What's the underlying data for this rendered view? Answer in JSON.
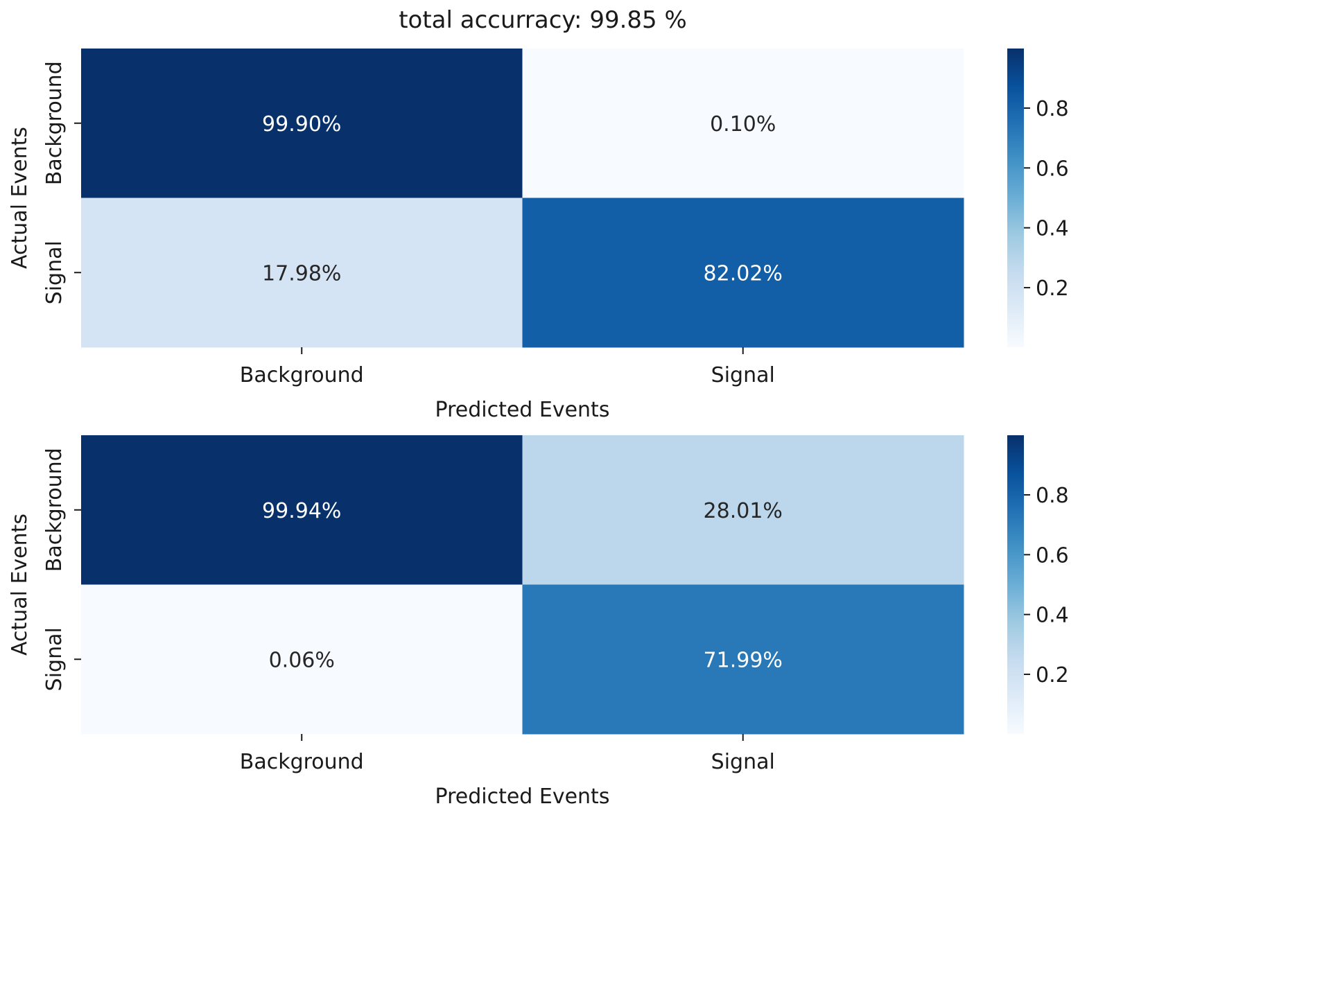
{
  "figure": {
    "title": "total accurracy: 99.85 %"
  },
  "chart_data": [
    {
      "type": "heatmap",
      "rows": [
        "Background",
        "Signal"
      ],
      "columns": [
        "Background",
        "Signal"
      ],
      "values": [
        [
          0.999,
          0.001
        ],
        [
          0.1798,
          0.8202
        ]
      ],
      "cell_labels": [
        [
          "99.90%",
          "0.10%"
        ],
        [
          "17.98%",
          "82.02%"
        ]
      ],
      "xlabel": "Predicted Events",
      "ylabel": "Actual Events",
      "colormap": "Blues",
      "colorbar": {
        "range": [
          0.001,
          0.999
        ],
        "ticks": [
          0.2,
          0.4,
          0.6,
          0.8
        ],
        "tick_labels": [
          "0.2",
          "0.4",
          "0.6",
          "0.8"
        ]
      }
    },
    {
      "type": "heatmap",
      "rows": [
        "Background",
        "Signal"
      ],
      "columns": [
        "Background",
        "Signal"
      ],
      "values": [
        [
          0.9994,
          0.2801
        ],
        [
          0.0006,
          0.7199
        ]
      ],
      "cell_labels": [
        [
          "99.94%",
          "28.01%"
        ],
        [
          "0.06%",
          "71.99%"
        ]
      ],
      "xlabel": "Predicted Events",
      "ylabel": "Actual Events",
      "colormap": "Blues",
      "colorbar": {
        "range": [
          0.0006,
          0.9994
        ],
        "ticks": [
          0.2,
          0.4,
          0.6,
          0.8
        ],
        "tick_labels": [
          "0.2",
          "0.4",
          "0.6",
          "0.8"
        ]
      }
    }
  ]
}
